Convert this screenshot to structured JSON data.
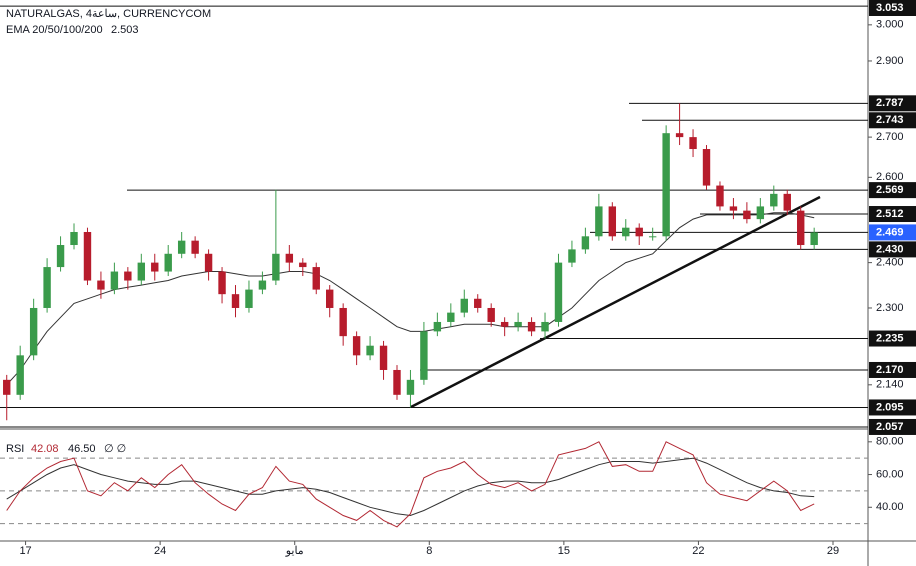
{
  "chart_data": {
    "type": "candlestick",
    "title": "NATURALGAS, 4ساعة, CURRENCYCOM",
    "log_scale": true,
    "up_color": "#3a9b4b",
    "down_color": "#b71c2c",
    "xlim": [
      -0.5,
      64
    ],
    "xticks": [
      {
        "value": 1.4,
        "label": "17"
      },
      {
        "value": 11.4,
        "label": "24"
      },
      {
        "value": 21.4,
        "label": "مايو"
      },
      {
        "value": 31.4,
        "label": "8"
      },
      {
        "value": 41.4,
        "label": "15"
      },
      {
        "value": 51.4,
        "label": "22"
      },
      {
        "value": 61.4,
        "label": "29"
      }
    ],
    "ylim": [
      2.055,
      3.065
    ],
    "yticks": [
      {
        "value": 3.0,
        "label": "3.000"
      },
      {
        "value": 2.9,
        "label": "2.900"
      },
      {
        "value": 2.7,
        "label": "2.700"
      },
      {
        "value": 2.6,
        "label": "2.600"
      },
      {
        "value": 2.4,
        "label": "2.400"
      },
      {
        "value": 2.3,
        "label": "2.300"
      },
      {
        "value": 2.14,
        "label": "2.140"
      }
    ],
    "open": [
      2.15,
      2.12,
      2.2,
      2.3,
      2.39,
      2.44,
      2.47,
      2.36,
      2.34,
      2.38,
      2.36,
      2.4,
      2.38,
      2.42,
      2.45,
      2.42,
      2.38,
      2.33,
      2.3,
      2.34,
      2.36,
      2.42,
      2.4,
      2.39,
      2.34,
      2.3,
      2.24,
      2.2,
      2.22,
      2.17,
      2.12,
      2.15,
      2.25,
      2.27,
      2.29,
      2.32,
      2.3,
      2.27,
      2.26,
      2.27,
      2.25,
      2.27,
      2.4,
      2.43,
      2.46,
      2.53,
      2.46,
      2.48,
      2.46,
      2.46,
      2.71,
      2.7,
      2.67,
      2.58,
      2.53,
      2.52,
      2.5,
      2.53,
      2.56,
      2.52,
      2.44
    ],
    "high": [
      2.16,
      2.22,
      2.32,
      2.41,
      2.46,
      2.49,
      2.48,
      2.38,
      2.4,
      2.39,
      2.42,
      2.42,
      2.44,
      2.47,
      2.46,
      2.43,
      2.39,
      2.35,
      2.36,
      2.38,
      2.57,
      2.44,
      2.41,
      2.4,
      2.35,
      2.31,
      2.25,
      2.24,
      2.23,
      2.18,
      2.17,
      2.27,
      2.29,
      2.31,
      2.34,
      2.33,
      2.31,
      2.28,
      2.29,
      2.28,
      2.29,
      2.42,
      2.45,
      2.48,
      2.56,
      2.54,
      2.5,
      2.49,
      2.48,
      2.73,
      2.787,
      2.72,
      2.68,
      2.59,
      2.55,
      2.54,
      2.55,
      2.58,
      2.57,
      2.53,
      2.48
    ],
    "low": [
      2.07,
      2.11,
      2.19,
      2.29,
      2.38,
      2.43,
      2.35,
      2.32,
      2.33,
      2.34,
      2.35,
      2.36,
      2.37,
      2.41,
      2.41,
      2.36,
      2.31,
      2.28,
      2.29,
      2.33,
      2.35,
      2.38,
      2.37,
      2.33,
      2.28,
      2.22,
      2.18,
      2.19,
      2.15,
      2.11,
      2.095,
      2.14,
      2.24,
      2.26,
      2.28,
      2.29,
      2.26,
      2.24,
      2.25,
      2.24,
      2.235,
      2.26,
      2.39,
      2.42,
      2.45,
      2.45,
      2.45,
      2.44,
      2.45,
      2.45,
      2.68,
      2.65,
      2.57,
      2.52,
      2.5,
      2.49,
      2.49,
      2.52,
      2.51,
      2.43,
      2.43
    ],
    "close": [
      2.12,
      2.2,
      2.3,
      2.39,
      2.44,
      2.47,
      2.36,
      2.34,
      2.38,
      2.36,
      2.4,
      2.38,
      2.42,
      2.45,
      2.42,
      2.38,
      2.33,
      2.3,
      2.34,
      2.36,
      2.42,
      2.4,
      2.39,
      2.34,
      2.3,
      2.24,
      2.2,
      2.22,
      2.17,
      2.12,
      2.15,
      2.25,
      2.27,
      2.29,
      2.32,
      2.3,
      2.27,
      2.26,
      2.27,
      2.25,
      2.27,
      2.4,
      2.43,
      2.46,
      2.53,
      2.46,
      2.48,
      2.46,
      2.46,
      2.71,
      2.7,
      2.67,
      2.58,
      2.53,
      2.52,
      2.5,
      2.53,
      2.56,
      2.52,
      2.44,
      2.469
    ],
    "ema": {
      "name": "EMA 20/50/100/200",
      "color": "#333333",
      "values": [
        2.14,
        2.17,
        2.21,
        2.25,
        2.28,
        2.31,
        2.32,
        2.33,
        2.34,
        2.345,
        2.35,
        2.355,
        2.36,
        2.37,
        2.375,
        2.38,
        2.38,
        2.375,
        2.37,
        2.37,
        2.375,
        2.38,
        2.38,
        2.375,
        2.36,
        2.34,
        2.32,
        2.3,
        2.28,
        2.26,
        2.25,
        2.25,
        2.255,
        2.26,
        2.265,
        2.265,
        2.265,
        2.26,
        2.26,
        2.26,
        2.26,
        2.28,
        2.3,
        2.33,
        2.36,
        2.38,
        2.4,
        2.41,
        2.42,
        2.45,
        2.48,
        2.5,
        2.51,
        2.51,
        2.51,
        2.51,
        2.51,
        2.515,
        2.515,
        2.51,
        2.503
      ]
    },
    "levels": [
      3.053,
      2.787,
      2.743,
      2.569,
      2.512,
      2.469,
      {
        "value": 2.43,
        "label": "2.430"
      },
      2.235,
      {
        "value": 2.17,
        "label": "2.170"
      },
      2.095,
      2.057
    ],
    "current_level_color": "#2962ff",
    "rsi": {
      "name": "RSI",
      "color": "#b22833",
      "ma_color": "#333333",
      "params": "∅ ∅",
      "values": [
        38,
        50,
        58,
        64,
        68,
        70,
        50,
        47,
        55,
        50,
        58,
        52,
        60,
        66,
        55,
        48,
        42,
        38,
        48,
        52,
        65,
        56,
        54,
        45,
        40,
        35,
        32,
        38,
        32,
        28,
        36,
        58,
        62,
        64,
        68,
        60,
        54,
        52,
        55,
        50,
        54,
        72,
        74,
        76,
        80,
        65,
        66,
        62,
        62,
        80,
        76,
        72,
        55,
        48,
        46,
        44,
        50,
        56,
        50,
        38,
        42.08
      ],
      "ma_values": [
        45,
        50,
        55,
        60,
        64,
        66,
        63,
        60,
        58,
        56,
        55,
        54,
        54,
        56,
        56,
        54,
        52,
        50,
        48,
        48,
        50,
        51,
        52,
        51,
        49,
        46,
        43,
        40,
        38,
        36,
        35,
        38,
        42,
        46,
        50,
        53,
        55,
        56,
        56,
        55,
        55,
        57,
        60,
        63,
        66,
        68,
        68,
        68,
        67,
        68,
        69,
        70,
        67,
        63,
        59,
        55,
        52,
        50,
        49,
        47,
        46.5
      ],
      "ma_value_labels": {
        "60": "46.50"
      },
      "ylim": [
        20,
        86
      ],
      "yticks": [
        {
          "value": 80,
          "label": "80.00"
        },
        {
          "value": 60,
          "label": "60.00"
        },
        {
          "value": 40,
          "label": "40.00"
        }
      ],
      "levels": [
        70,
        50,
        30
      ]
    }
  }
}
